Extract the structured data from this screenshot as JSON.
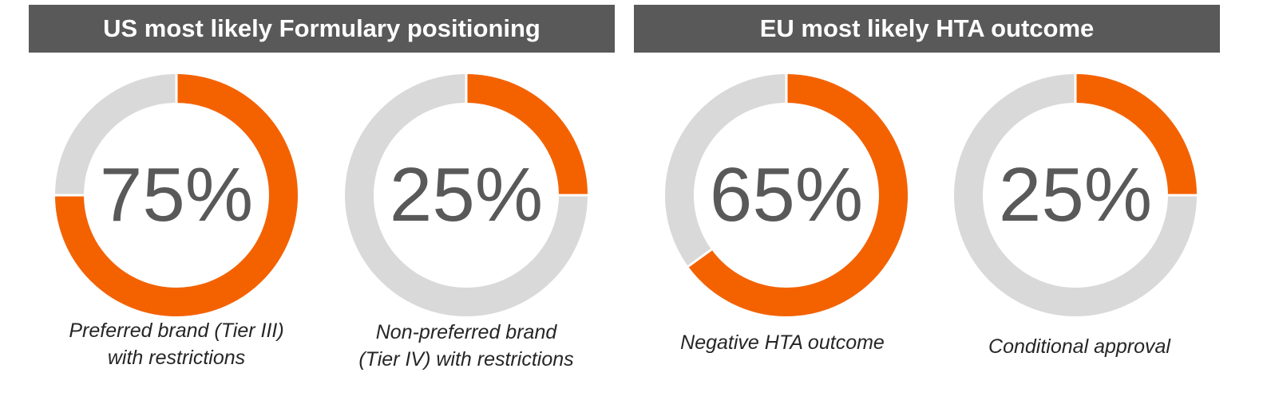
{
  "headers": {
    "us": "US most likely Formulary positioning",
    "eu": "EU most likely HTA outcome"
  },
  "colors": {
    "accent": "#f46200",
    "track": "#d9d9d9",
    "header_bg": "#595959",
    "text": "#595959"
  },
  "chart_data": [
    {
      "type": "pie",
      "group": "US most likely Formulary positioning",
      "value": 75,
      "display": "75%",
      "label_lines": [
        "Preferred brand (Tier III)",
        "with restrictions"
      ]
    },
    {
      "type": "pie",
      "group": "US most likely Formulary positioning",
      "value": 25,
      "display": "25%",
      "label_lines": [
        "Non-preferred brand",
        "(Tier IV) with restrictions"
      ]
    },
    {
      "type": "pie",
      "group": "EU most likely HTA outcome",
      "value": 65,
      "display": "65%",
      "label_lines": [
        "Negative HTA outcome"
      ]
    },
    {
      "type": "pie",
      "group": "EU most likely HTA outcome",
      "value": 25,
      "display": "25%",
      "label_lines": [
        "Conditional approval"
      ]
    }
  ]
}
